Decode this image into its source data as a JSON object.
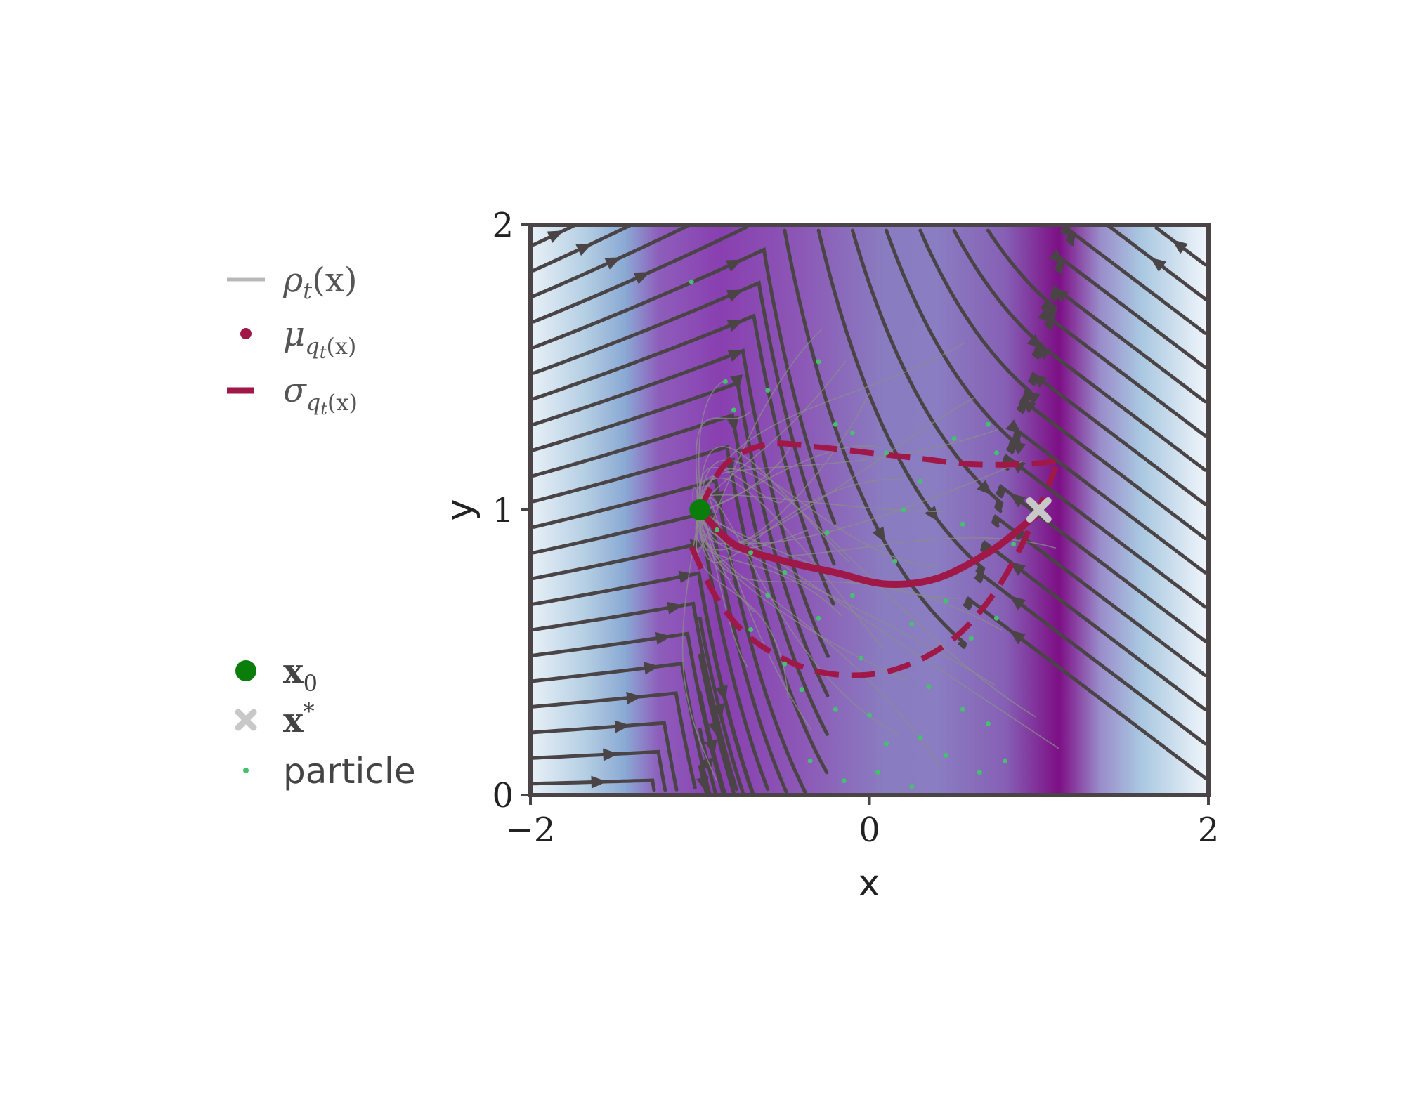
{
  "chart_data": {
    "type": "streamplot",
    "xlabel": "x",
    "ylabel": "y",
    "xlim": [
      -2,
      2
    ],
    "ylim": [
      0,
      2
    ],
    "xticks": [
      {
        "value": -2,
        "label": "−2"
      },
      {
        "value": 0,
        "label": "0"
      },
      {
        "value": 2,
        "label": "2"
      }
    ],
    "yticks": [
      {
        "value": 0,
        "label": "0"
      },
      {
        "value": 1,
        "label": "1"
      },
      {
        "value": 2,
        "label": "2"
      }
    ],
    "x0": [
      -1,
      1
    ],
    "x_star": [
      1,
      1
    ],
    "mean_path": [
      [
        -1,
        1
      ],
      [
        -0.8,
        0.88
      ],
      [
        -0.5,
        0.82
      ],
      [
        -0.2,
        0.78
      ],
      [
        0.1,
        0.74
      ],
      [
        0.4,
        0.76
      ],
      [
        0.7,
        0.85
      ],
      [
        0.9,
        0.94
      ],
      [
        1,
        1
      ]
    ],
    "sigma_upper": [
      [
        -1,
        1
      ],
      [
        -0.85,
        1.16
      ],
      [
        -0.6,
        1.23
      ],
      [
        -0.3,
        1.22
      ],
      [
        0,
        1.2
      ],
      [
        0.3,
        1.18
      ],
      [
        0.6,
        1.16
      ],
      [
        0.9,
        1.16
      ],
      [
        1.1,
        1.17
      ]
    ],
    "sigma_lower": [
      [
        -1.05,
        0.87
      ],
      [
        -0.9,
        0.69
      ],
      [
        -0.7,
        0.55
      ],
      [
        -0.4,
        0.45
      ],
      [
        -0.1,
        0.42
      ],
      [
        0.2,
        0.45
      ],
      [
        0.5,
        0.55
      ],
      [
        0.75,
        0.72
      ],
      [
        0.95,
        0.94
      ],
      [
        1.1,
        1.15
      ]
    ],
    "particles": [
      [
        -1.05,
        1.8
      ],
      [
        -0.85,
        1.45
      ],
      [
        -0.8,
        1.35
      ],
      [
        -0.6,
        1.42
      ],
      [
        -0.3,
        1.52
      ],
      [
        -0.2,
        1.3
      ],
      [
        -0.1,
        1.27
      ],
      [
        0.1,
        1.2
      ],
      [
        0.3,
        1.1
      ],
      [
        0.5,
        1.25
      ],
      [
        0.7,
        1.3
      ],
      [
        0.75,
        1.2
      ],
      [
        -0.9,
        0.93
      ],
      [
        -0.7,
        0.85
      ],
      [
        -0.5,
        0.78
      ],
      [
        -0.3,
        0.62
      ],
      [
        -0.1,
        0.7
      ],
      [
        0.15,
        0.82
      ],
      [
        0.25,
        0.6
      ],
      [
        0.45,
        0.68
      ],
      [
        0.6,
        0.55
      ],
      [
        0.75,
        0.62
      ],
      [
        0.85,
        0.88
      ],
      [
        -0.7,
        0.58
      ],
      [
        -0.5,
        0.46
      ],
      [
        -0.4,
        0.37
      ],
      [
        -0.2,
        0.3
      ],
      [
        0.0,
        0.28
      ],
      [
        0.1,
        0.18
      ],
      [
        0.3,
        0.2
      ],
      [
        0.45,
        0.14
      ],
      [
        0.55,
        0.3
      ],
      [
        0.7,
        0.25
      ],
      [
        -0.35,
        0.12
      ],
      [
        -0.15,
        0.05
      ],
      [
        0.05,
        0.08
      ],
      [
        0.25,
        0.03
      ],
      [
        0.65,
        0.08
      ],
      [
        0.8,
        0.12
      ],
      [
        0.35,
        0.38
      ],
      [
        -0.05,
        0.48
      ],
      [
        -0.6,
        0.7
      ],
      [
        0.55,
        0.95
      ],
      [
        0.2,
        1.0
      ],
      [
        -0.25,
        0.92
      ]
    ],
    "legend": [
      {
        "label": "ρ_t(x)",
        "marker": "line",
        "color": "#b8b8b8"
      },
      {
        "label": "μ_q_t(x)",
        "marker": "dot",
        "color": "#a01848"
      },
      {
        "label": "σ_q_t(x)",
        "marker": "dash",
        "color": "#a01848"
      },
      {
        "label": "x_0",
        "marker": "circle",
        "color": "#0b7d0b"
      },
      {
        "label": "x^*",
        "marker": "x",
        "color": "#c8c8c8"
      },
      {
        "label": "particle",
        "marker": "small-dot",
        "color": "#46c070"
      }
    ],
    "colors": {
      "streamlines": "#4a4446",
      "mean": "#a01848",
      "sigma": "#a01848",
      "density_lines": "#8c8c8c",
      "x0": "#0b7d0b",
      "x_star": "#c8c8c8",
      "particles": "#46c070",
      "frame": "#4a4446"
    }
  },
  "legend_text": {
    "rho": {
      "base": "ρ",
      "sub": "t",
      "tail": "(x)"
    },
    "mu": {
      "base": "μ",
      "sub": "q",
      "subsub": "t",
      "tail": "(x)"
    },
    "sigma": {
      "base": "σ",
      "sub": "q",
      "subsub": "t",
      "tail": "(x)"
    },
    "x0": {
      "base": "x",
      "sub": "0"
    },
    "xstar": {
      "base": "x",
      "sup": "*"
    },
    "particle": "particle"
  }
}
